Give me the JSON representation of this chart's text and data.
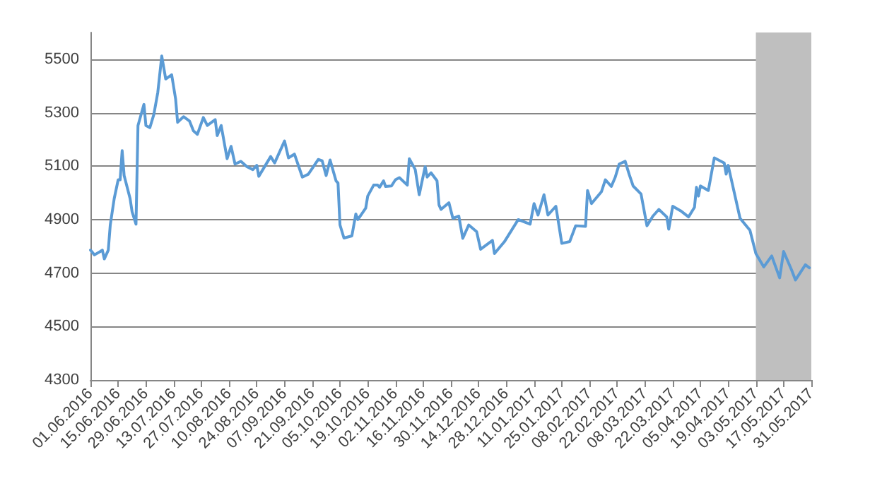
{
  "chart_data": {
    "type": "line",
    "x": [
      "2016-06-01",
      "2016-06-03",
      "2016-06-06",
      "2016-06-07",
      "2016-06-08",
      "2016-06-10",
      "2016-06-11",
      "2016-06-13",
      "2016-06-15",
      "2016-06-16",
      "2016-06-17",
      "2016-06-18",
      "2016-06-21",
      "2016-06-22",
      "2016-06-24",
      "2016-06-25",
      "2016-06-28",
      "2016-06-29",
      "2016-07-01",
      "2016-07-03",
      "2016-07-05",
      "2016-07-07",
      "2016-07-09",
      "2016-07-12",
      "2016-07-14",
      "2016-07-15",
      "2016-07-18",
      "2016-07-21",
      "2016-07-23",
      "2016-07-25",
      "2016-07-28",
      "2016-07-30",
      "2016-08-03",
      "2016-08-04",
      "2016-08-06",
      "2016-08-09",
      "2016-08-11",
      "2016-08-13",
      "2016-08-16",
      "2016-08-19",
      "2016-08-22",
      "2016-08-24",
      "2016-08-25",
      "2016-08-31",
      "2016-09-02",
      "2016-09-07",
      "2016-09-09",
      "2016-09-12",
      "2016-09-16",
      "2016-09-19",
      "2016-09-21",
      "2016-09-24",
      "2016-09-26",
      "2016-09-28",
      "2016-09-30",
      "2016-10-03",
      "2016-10-04",
      "2016-10-05",
      "2016-10-07",
      "2016-10-11",
      "2016-10-13",
      "2016-10-14",
      "2016-10-18",
      "2016-10-19",
      "2016-10-22",
      "2016-10-24",
      "2016-10-25",
      "2016-10-27",
      "2016-10-28",
      "2016-10-31",
      "2016-11-02",
      "2016-11-04",
      "2016-11-08",
      "2016-11-09",
      "2016-11-12",
      "2016-11-14",
      "2016-11-17",
      "2016-11-18",
      "2016-11-20",
      "2016-11-23",
      "2016-11-24",
      "2016-11-25",
      "2016-11-29",
      "2016-12-01",
      "2016-12-04",
      "2016-12-06",
      "2016-12-09",
      "2016-12-13",
      "2016-12-15",
      "2016-12-21",
      "2016-12-22",
      "2016-12-27",
      "2017-01-03",
      "2017-01-09",
      "2017-01-11",
      "2017-01-13",
      "2017-01-16",
      "2017-01-18",
      "2017-01-22",
      "2017-01-25",
      "2017-01-29",
      "2017-02-01",
      "2017-02-06",
      "2017-02-07",
      "2017-02-09",
      "2017-02-14",
      "2017-02-16",
      "2017-02-19",
      "2017-02-21",
      "2017-02-23",
      "2017-02-26",
      "2017-02-28",
      "2017-03-02",
      "2017-03-06",
      "2017-03-09",
      "2017-03-12",
      "2017-03-15",
      "2017-03-19",
      "2017-03-20",
      "2017-03-22",
      "2017-03-26",
      "2017-03-30",
      "2017-04-02",
      "2017-04-03",
      "2017-04-04",
      "2017-04-05",
      "2017-04-09",
      "2017-04-12",
      "2017-04-17",
      "2017-04-18",
      "2017-04-19",
      "2017-04-25",
      "2017-04-30",
      "2017-05-03",
      "2017-05-07",
      "2017-05-11",
      "2017-05-15",
      "2017-05-17",
      "2017-05-21",
      "2017-05-23",
      "2017-05-28",
      "2017-05-30"
    ],
    "series": [
      {
        "color": "#5b9bd5",
        "values": [
          4786,
          4768,
          4781,
          4786,
          4753,
          4786,
          4880,
          4979,
          5049,
          5049,
          5158,
          5065,
          4979,
          4930,
          4883,
          5252,
          5331,
          5252,
          5244,
          5293,
          5376,
          5512,
          5426,
          5442,
          5351,
          5264,
          5285,
          5269,
          5232,
          5219,
          5282,
          5252,
          5274,
          5214,
          5252,
          5128,
          5174,
          5108,
          5118,
          5098,
          5087,
          5103,
          5062,
          5136,
          5112,
          5194,
          5131,
          5145,
          5059,
          5070,
          5092,
          5125,
          5120,
          5065,
          5123,
          5045,
          5037,
          4880,
          4831,
          4839,
          4921,
          4900,
          4943,
          4988,
          5029,
          5029,
          5021,
          5045,
          5024,
          5026,
          5049,
          5057,
          5029,
          5128,
          5087,
          4993,
          5098,
          5059,
          5075,
          5045,
          4955,
          4938,
          4963,
          4905,
          4913,
          4830,
          4880,
          4855,
          4789,
          4822,
          4773,
          4817,
          4900,
          4883,
          4960,
          4917,
          4993,
          4917,
          4950,
          4811,
          4818,
          4877,
          4875,
          5009,
          4960,
          5004,
          5049,
          5024,
          5059,
          5108,
          5118,
          5070,
          5026,
          4996,
          4877,
          4913,
          4938,
          4910,
          4864,
          4950,
          4933,
          4910,
          4946,
          5021,
          4988,
          5026,
          5009,
          5131,
          5112,
          5070,
          5103,
          4905,
          4860,
          4773,
          4723,
          4764,
          4682,
          4781,
          4712,
          4674,
          4731,
          4720
        ]
      }
    ],
    "xlim": [
      "2016-06-01",
      "2017-05-31"
    ],
    "xticks": [
      {
        "value": "2016-06-01",
        "label": "01.06.2016"
      },
      {
        "value": "2016-06-15",
        "label": "15.06.2016"
      },
      {
        "value": "2016-06-29",
        "label": "29.06.2016"
      },
      {
        "value": "2016-07-13",
        "label": "13.07.2016"
      },
      {
        "value": "2016-07-27",
        "label": "27.07.2016"
      },
      {
        "value": "2016-08-10",
        "label": "10.08.2016"
      },
      {
        "value": "2016-08-24",
        "label": "24.08.2016"
      },
      {
        "value": "2016-09-07",
        "label": "07.09.2016"
      },
      {
        "value": "2016-09-21",
        "label": "21.09.2016"
      },
      {
        "value": "2016-10-05",
        "label": "05.10.2016"
      },
      {
        "value": "2016-10-19",
        "label": "19.10.2016"
      },
      {
        "value": "2016-11-02",
        "label": "02.11.2016"
      },
      {
        "value": "2016-11-16",
        "label": "16.11.2016"
      },
      {
        "value": "2016-11-30",
        "label": "30.11.2016"
      },
      {
        "value": "2016-12-14",
        "label": "14.12.2016"
      },
      {
        "value": "2016-12-28",
        "label": "28.12.2016"
      },
      {
        "value": "2017-01-11",
        "label": "11.01.2017"
      },
      {
        "value": "2017-01-25",
        "label": "25.01.2017"
      },
      {
        "value": "2017-02-08",
        "label": "08.02.2017"
      },
      {
        "value": "2017-02-22",
        "label": "22.02.2017"
      },
      {
        "value": "2017-03-08",
        "label": "08.03.2017"
      },
      {
        "value": "2017-03-22",
        "label": "22.03.2017"
      },
      {
        "value": "2017-04-05",
        "label": "05.04.2017"
      },
      {
        "value": "2017-04-19",
        "label": "19.04.2017"
      },
      {
        "value": "2017-05-03",
        "label": "03.05.2017"
      },
      {
        "value": "2017-05-17",
        "label": "17.05.2017"
      },
      {
        "value": "2017-05-31",
        "label": "31.05.2017"
      }
    ],
    "ylim": [
      4300,
      5600
    ],
    "yticks": [
      4300,
      4500,
      4700,
      4900,
      5100,
      5300,
      5500
    ],
    "grid": "y",
    "bands": [
      {
        "axis": "x",
        "from": "2017-05-03",
        "to": "2017-05-31",
        "color": "#bfbfbf"
      }
    ]
  }
}
